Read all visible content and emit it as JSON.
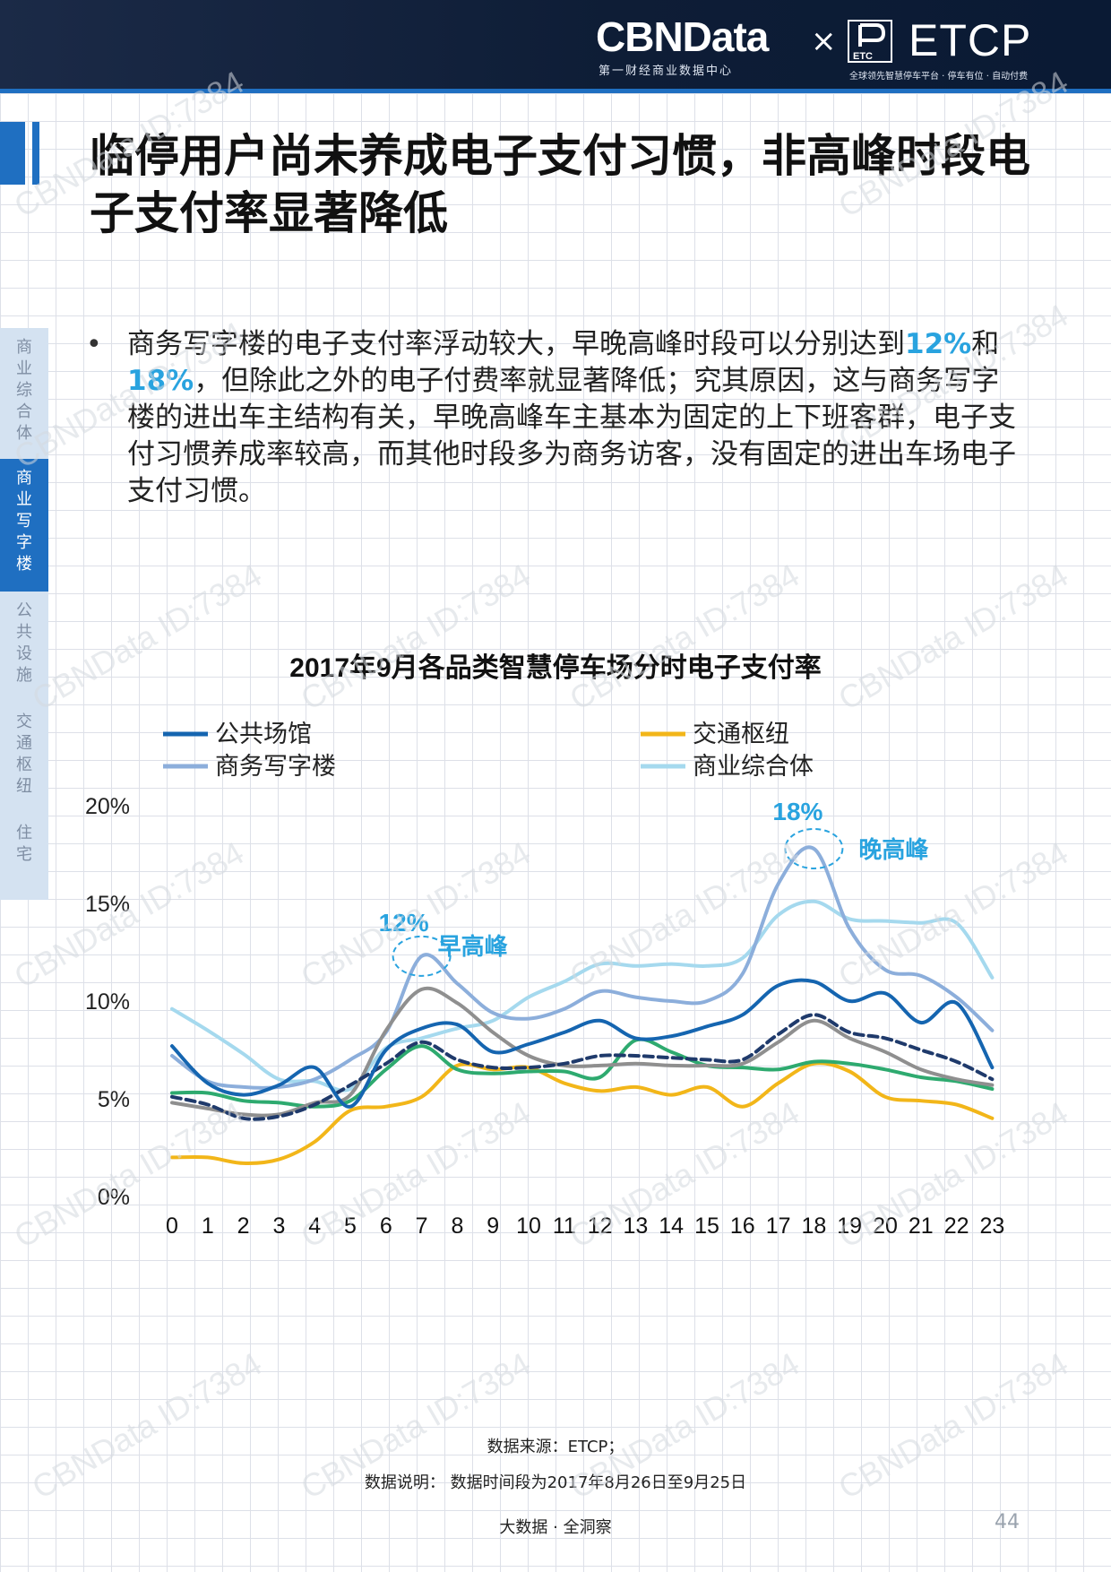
{
  "header": {
    "brand_left": "CBNData",
    "brand_left_sub": "第一财经商业数据中心",
    "separator": "×",
    "etc_mark_text": "ETC",
    "brand_right": "ETCP",
    "brand_right_sub": "全球领先智慧停车平台 · 停车有位 · 自动付费"
  },
  "title": "临停用户尚未养成电子支付习惯，非高峰时段电子支付率显著降低",
  "sidenav": [
    {
      "label": "商业综合体",
      "active": false
    },
    {
      "label": "商业写字楼",
      "active": true
    },
    {
      "label": "公共设施",
      "active": false
    },
    {
      "label": "交通枢纽",
      "active": false
    },
    {
      "label": "住宅",
      "active": false
    }
  ],
  "bullet": {
    "dot": "•",
    "part1": "商务写字楼的电子支付率浮动较大，早晚高峰时段可以分别达到",
    "hl1": "12%",
    "part2": "和",
    "hl2": "18%",
    "part3": "，但除此之外的电子付费率就显著降低；究其原因，这与商务写字楼的进出车主结构有关，早晚高峰车主基本为固定的上下班客群，电子支付习惯养成率较高，而其他时段多为商务访客，没有固定的进出车场电子支付习惯。"
  },
  "chart_data": {
    "type": "line",
    "title": "2017年9月各品类智慧停车场分时电子支付率",
    "x": [
      0,
      1,
      2,
      3,
      4,
      5,
      6,
      7,
      8,
      9,
      10,
      11,
      12,
      13,
      14,
      15,
      16,
      17,
      18,
      19,
      20,
      21,
      22,
      23
    ],
    "ylim": [
      0,
      20
    ],
    "yticks": [
      "0%",
      "5%",
      "10%",
      "15%",
      "20%"
    ],
    "series": [
      {
        "name": "公共场馆",
        "color": "#1565b0",
        "dash": false,
        "values": [
          7.7,
          5.8,
          5.2,
          5.7,
          6.6,
          4.6,
          7.5,
          8.6,
          8.8,
          7.4,
          7.8,
          8.4,
          9.0,
          8.1,
          8.2,
          8.7,
          9.3,
          10.8,
          11.0,
          10.0,
          10.4,
          8.9,
          9.9,
          6.6
        ]
      },
      {
        "name": "交通枢纽",
        "color": "#f2b619",
        "dash": false,
        "values": [
          2.0,
          2.0,
          1.7,
          1.9,
          2.8,
          4.4,
          4.6,
          5.1,
          6.7,
          6.5,
          6.6,
          5.8,
          5.4,
          5.6,
          5.2,
          5.6,
          4.6,
          5.8,
          6.8,
          6.4,
          5.1,
          4.9,
          4.7,
          4.0
        ]
      },
      {
        "name": "商务写字楼",
        "color": "#8caedb",
        "dash": false,
        "values": [
          7.2,
          5.9,
          5.6,
          5.6,
          6.0,
          7.0,
          8.4,
          12.3,
          10.9,
          9.4,
          9.1,
          9.6,
          10.5,
          10.2,
          10.0,
          10.0,
          11.4,
          16.0,
          17.8,
          13.7,
          11.6,
          11.3,
          10.2,
          8.5
        ]
      },
      {
        "name": "商业综合体",
        "color": "#a5d9ee",
        "dash": false,
        "values": [
          9.6,
          8.5,
          7.3,
          6.0,
          5.9,
          5.5,
          7.6,
          8.1,
          8.6,
          9.0,
          10.2,
          11.0,
          11.9,
          11.8,
          11.9,
          11.8,
          12.2,
          14.4,
          15.1,
          14.2,
          14.1,
          14.0,
          14.0,
          11.2
        ]
      },
      {
        "name": "",
        "color": "#1f3a6b",
        "dash": true,
        "values": [
          5.1,
          4.7,
          4.0,
          4.1,
          4.7,
          5.7,
          6.8,
          7.9,
          7.0,
          6.6,
          6.6,
          6.8,
          7.2,
          7.2,
          7.1,
          7.0,
          7.0,
          8.3,
          9.3,
          8.4,
          8.1,
          7.5,
          6.9,
          6.0
        ]
      },
      {
        "name": "",
        "color": "#2eaa6f",
        "dash": false,
        "values": [
          5.3,
          5.3,
          4.9,
          4.8,
          4.6,
          4.9,
          6.5,
          7.7,
          6.5,
          6.3,
          6.4,
          6.4,
          6.1,
          8.0,
          7.4,
          6.7,
          6.6,
          6.5,
          6.9,
          6.8,
          6.5,
          6.1,
          5.9,
          5.5
        ]
      },
      {
        "name": "",
        "color": "#8f8f8f",
        "dash": false,
        "values": [
          4.8,
          4.5,
          4.2,
          4.2,
          4.8,
          5.2,
          8.5,
          10.6,
          9.9,
          8.4,
          7.2,
          6.7,
          6.7,
          6.8,
          6.7,
          6.7,
          6.8,
          7.9,
          9.0,
          8.1,
          7.4,
          6.5,
          6.0,
          5.7
        ]
      }
    ],
    "annotations": [
      {
        "label": "12%",
        "note": "早高峰",
        "x": 7,
        "y": 12.3
      },
      {
        "label": "18%",
        "note": "晚高峰",
        "x": 18,
        "y": 17.8
      }
    ],
    "legend": "top"
  },
  "footer": {
    "source": "数据来源：ETCP；",
    "note": "数据说明： 数据时间段为2017年8月26日至9月25日",
    "slogan": "大数据 · 全洞察",
    "page_number": "44"
  },
  "watermark": "CBNData ID:7384",
  "colors": {
    "accent": "#1f6fc1",
    "highlight": "#29a3df"
  }
}
